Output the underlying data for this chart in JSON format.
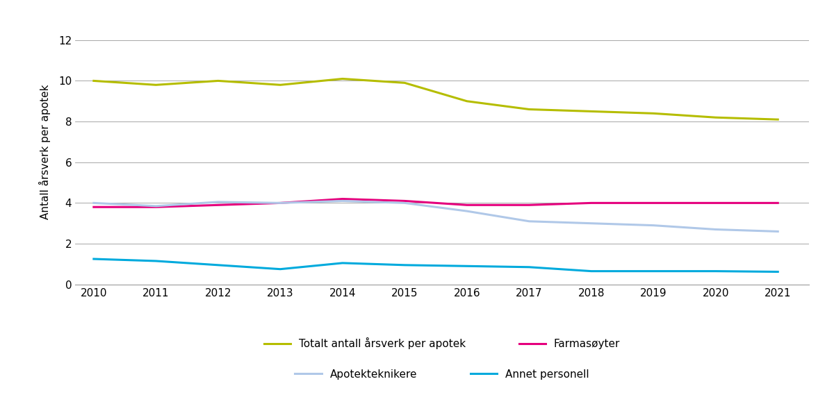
{
  "years": [
    2010,
    2011,
    2012,
    2013,
    2014,
    2015,
    2016,
    2017,
    2018,
    2019,
    2020,
    2021
  ],
  "totalt": [
    10.0,
    9.8,
    10.0,
    9.8,
    10.1,
    9.9,
    9.0,
    8.6,
    8.5,
    8.4,
    8.2,
    8.1
  ],
  "farmasoyter": [
    3.8,
    3.8,
    3.9,
    4.0,
    4.2,
    4.1,
    3.9,
    3.9,
    4.0,
    4.0,
    4.0,
    4.0
  ],
  "apotekteknikere": [
    4.0,
    3.85,
    4.05,
    4.0,
    4.1,
    4.0,
    3.6,
    3.1,
    3.0,
    2.9,
    2.7,
    2.6
  ],
  "annet_personell": [
    1.25,
    1.15,
    0.95,
    0.75,
    1.05,
    0.95,
    0.9,
    0.85,
    0.65,
    0.65,
    0.65,
    0.62
  ],
  "colors": {
    "totalt": "#b5bd00",
    "farmasoyter": "#e5007d",
    "apotekteknikere": "#b0c8e8",
    "annet_personell": "#00aadd"
  },
  "linewidths": {
    "totalt": 2.2,
    "farmasoyter": 2.2,
    "apotekteknikere": 2.2,
    "annet_personell": 2.2
  },
  "legend_labels": {
    "totalt": "Totalt antall årsverk per apotek",
    "farmasoyter": "Farmasøyter",
    "apotekteknikere": "Apotekteknikere",
    "annet_personell": "Annet personell"
  },
  "ylabel": "Antall årsverk per apotek",
  "ylim": [
    0,
    13
  ],
  "yticks": [
    0,
    2,
    4,
    6,
    8,
    10,
    12
  ],
  "background_color": "#ffffff",
  "grid_color": "#999999",
  "axis_fontsize": 11,
  "legend_fontsize": 11
}
